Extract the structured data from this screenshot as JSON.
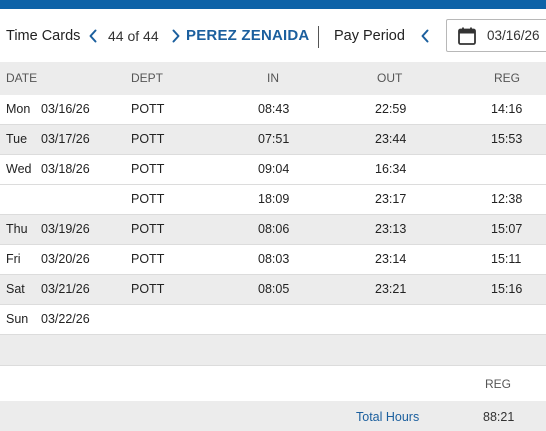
{
  "colors": {
    "accent": "#1b5f9e",
    "topbar": "#0e63a8",
    "row_alt": "#ececec"
  },
  "toolbar": {
    "title": "Time Cards",
    "prev_icon": "chevron-left-icon",
    "count": "44 of 44",
    "next_icon": "chevron-right-icon",
    "employee": "PEREZ ZENAIDA",
    "pay_period_label": "Pay Period",
    "period_prev_icon": "chevron-left-icon",
    "calendar_icon": "calendar-icon",
    "date": "03/16/26"
  },
  "table": {
    "columns": {
      "date": "DATE",
      "dept": "DEPT",
      "in": "IN",
      "out": "OUT",
      "reg": "REG"
    },
    "rows": [
      {
        "day": "Mon",
        "date": "03/16/26",
        "dept": "POTT",
        "in": "08:43",
        "out": "22:59",
        "reg": "14:16"
      },
      {
        "day": "Tue",
        "date": "03/17/26",
        "dept": "POTT",
        "in": "07:51",
        "out": "23:44",
        "reg": "15:53"
      },
      {
        "day": "Wed",
        "date": "03/18/26",
        "dept": "POTT",
        "in": "09:04",
        "out": "16:34",
        "reg": ""
      },
      {
        "day": "",
        "date": "",
        "dept": "POTT",
        "in": "18:09",
        "out": "23:17",
        "reg": "12:38"
      },
      {
        "day": "Thu",
        "date": "03/19/26",
        "dept": "POTT",
        "in": "08:06",
        "out": "23:13",
        "reg": "15:07"
      },
      {
        "day": "Fri",
        "date": "03/20/26",
        "dept": "POTT",
        "in": "08:03",
        "out": "23:14",
        "reg": "15:11"
      },
      {
        "day": "Sat",
        "date": "03/21/26",
        "dept": "POTT",
        "in": "08:05",
        "out": "23:21",
        "reg": "15:16"
      },
      {
        "day": "Sun",
        "date": "03/22/26",
        "dept": "",
        "in": "",
        "out": "",
        "reg": ""
      }
    ]
  },
  "summary": {
    "reg_header": "REG",
    "total_label": "Total Hours",
    "total_value": "88:21"
  }
}
